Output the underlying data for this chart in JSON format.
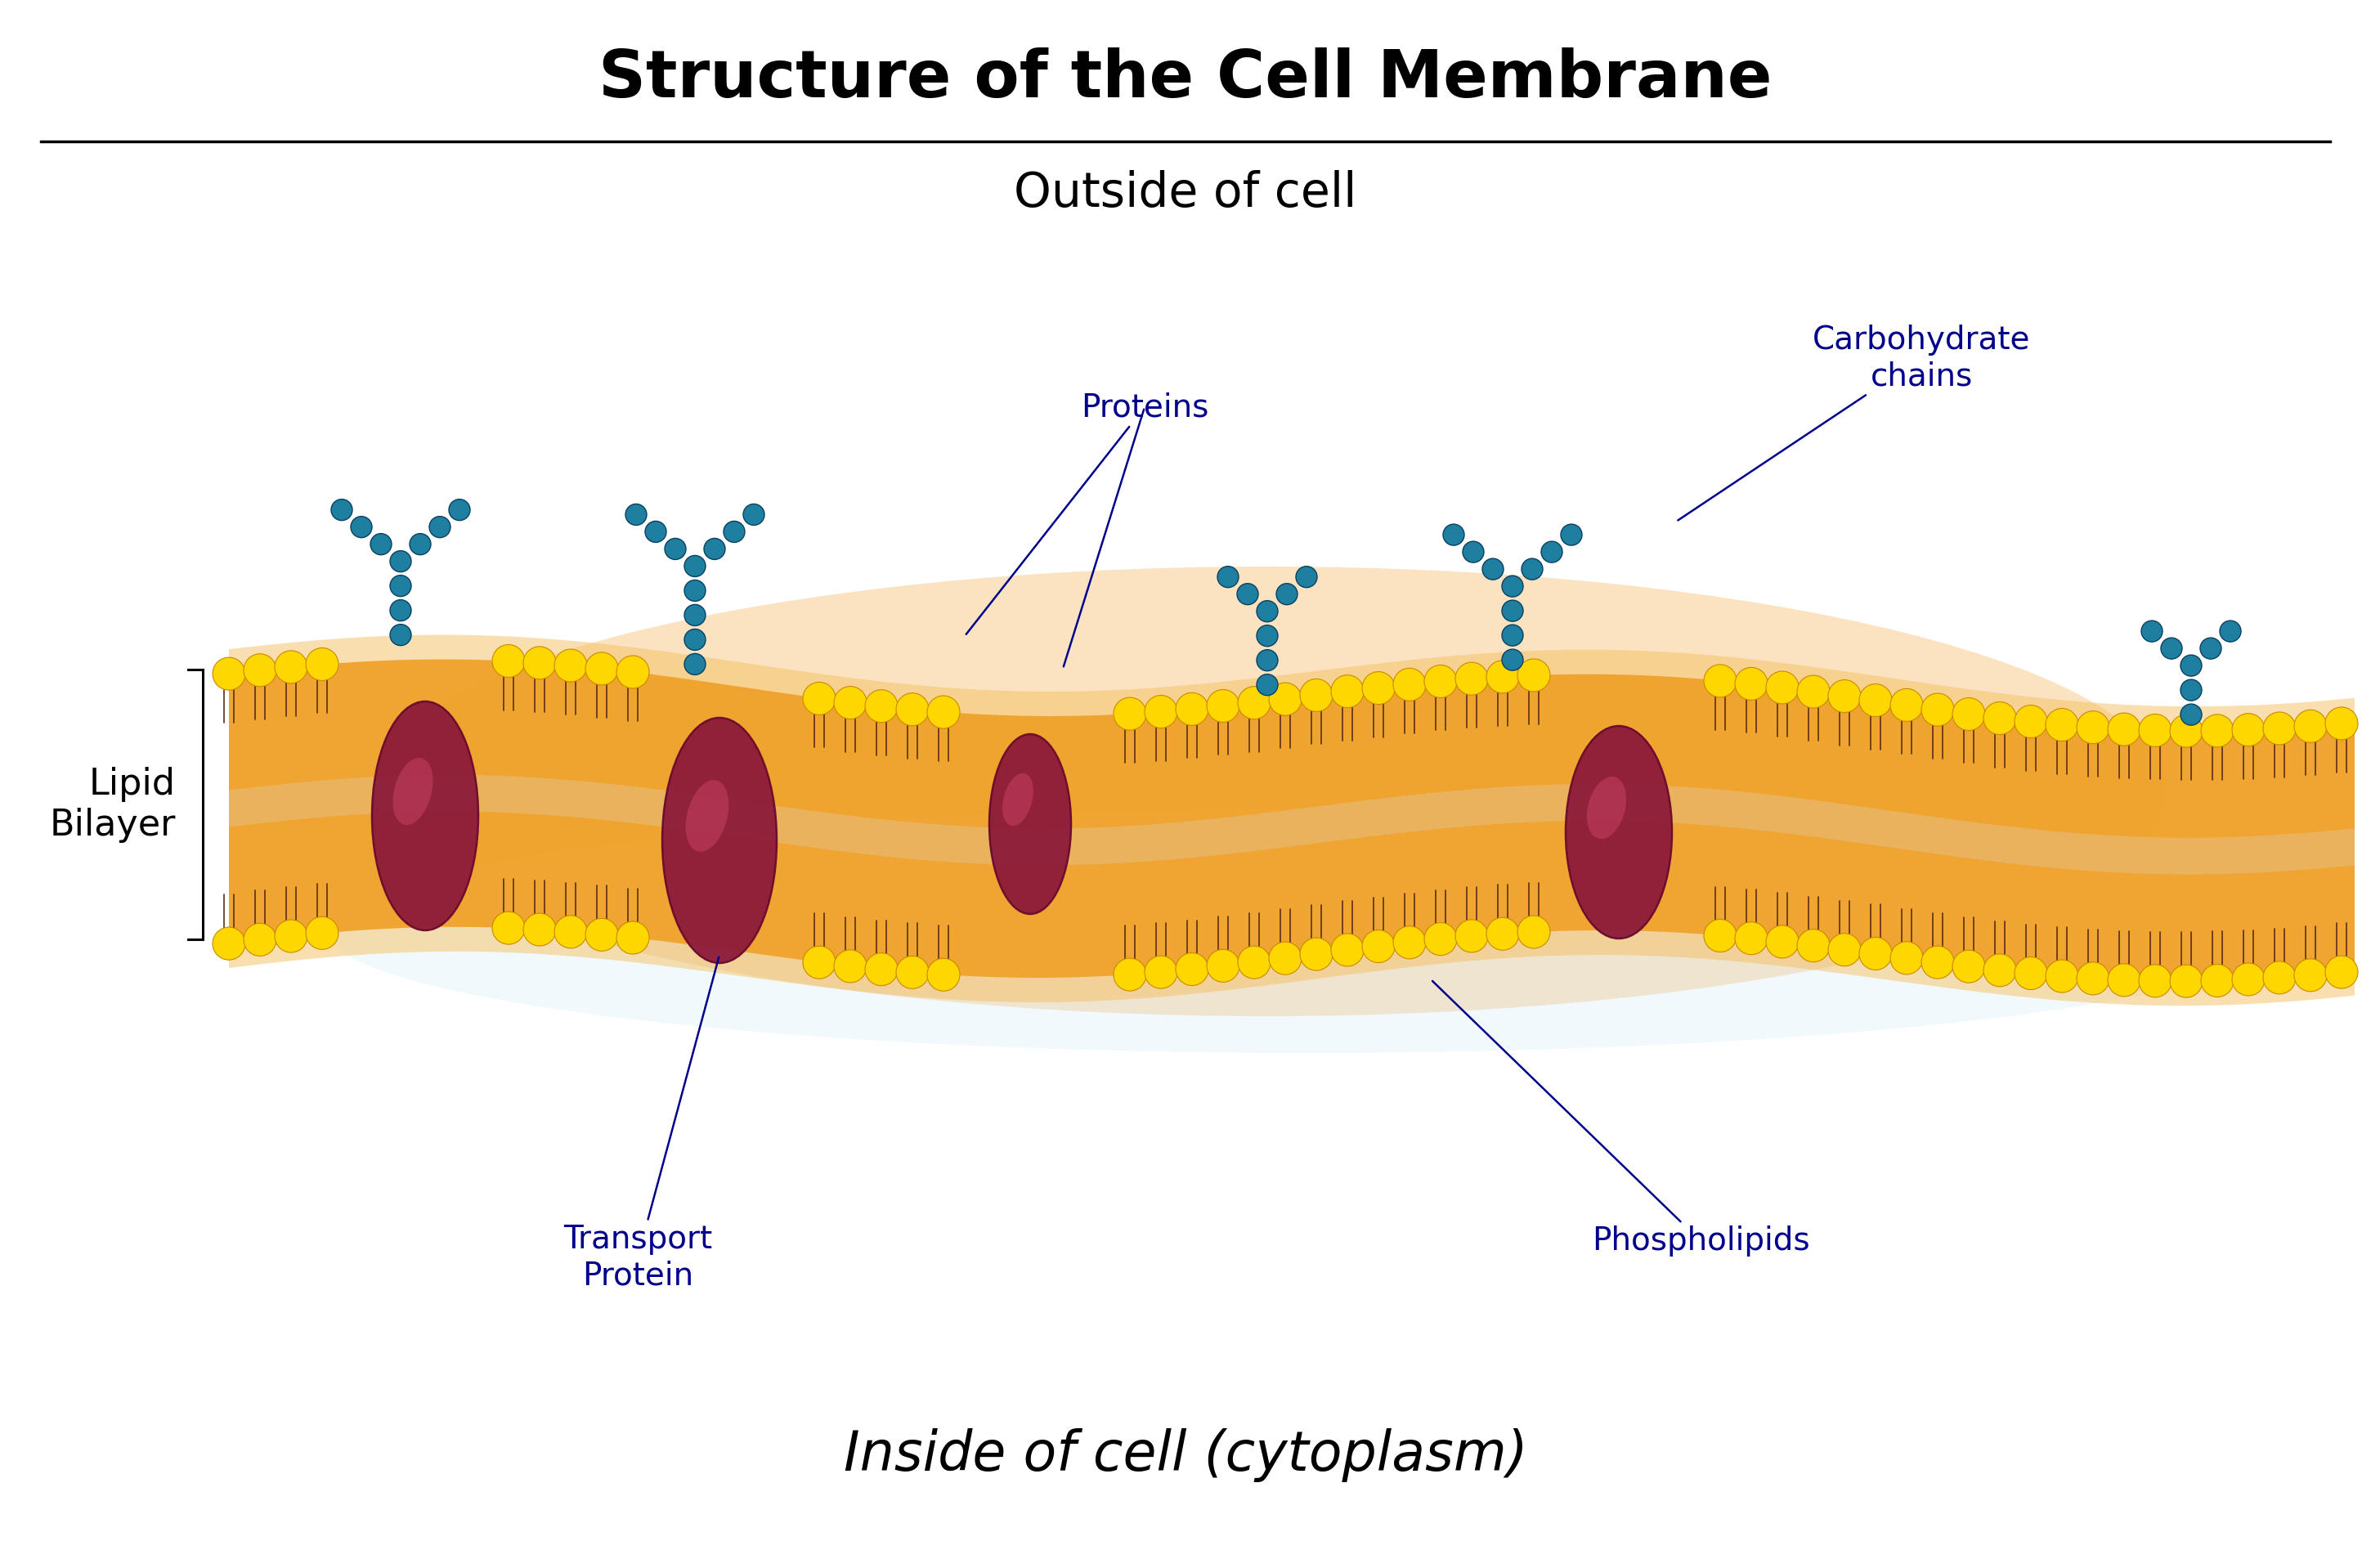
{
  "title": "Structure of the Cell Membrane",
  "title_fontsize": 58,
  "title_fontweight": "bold",
  "outside_label": "Outside of cell",
  "outside_fontsize": 42,
  "inside_label": "Inside of cell (cytoplasm)",
  "inside_fontsize": 48,
  "lipid_bilayer_label": "Lipid\nBilayer",
  "lipid_bilayer_fontsize": 32,
  "label_color": "#00008B",
  "label_proteins": "Proteins",
  "label_transport": "Transport\nProtein",
  "label_carbo": "Carbohydrate\nchains",
  "label_phospholipids": "Phospholipids",
  "bg_color": "#ffffff",
  "head_color": "#FFD700",
  "head_edge": "#CC8800",
  "tail_color": "#5C3010",
  "membrane_orange": "#F5A030",
  "membrane_shadow": "#E8C080",
  "protein_color": "#8B1A3A",
  "protein_edge": "#6B0A2A",
  "carbo_color": "#1A7A9A",
  "separator_color": "#000000",
  "label_fs": 28
}
